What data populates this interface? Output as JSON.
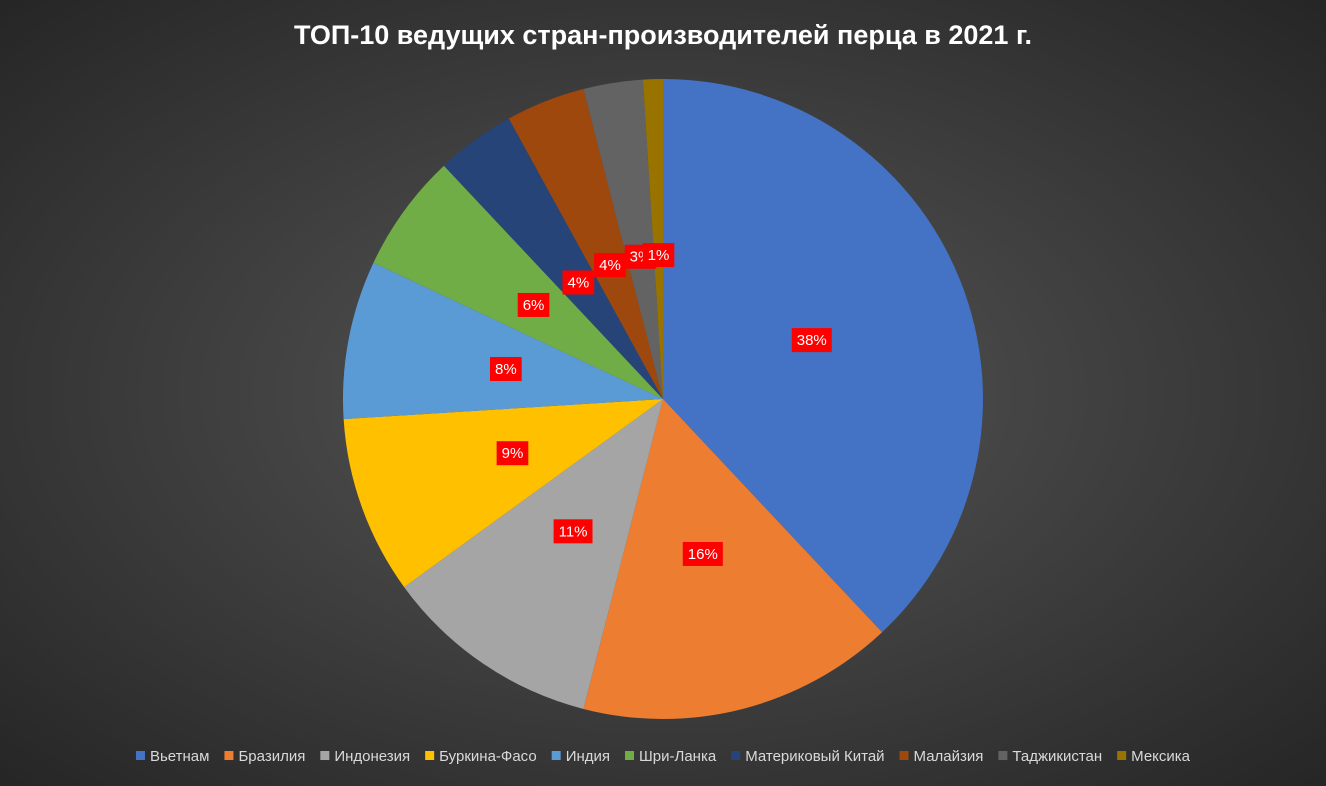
{
  "chart_data": {
    "type": "pie",
    "title": "ТОП-10 ведущих стран-производителей перца в 2021 г.",
    "categories": [
      "Вьетнам",
      "Бразилия",
      "Индонезия",
      "Буркина-Фасо",
      "Индия",
      "Шри-Ланка",
      "Материковый Китай",
      "Малайзия",
      "Таджикистан",
      "Мексика"
    ],
    "values": [
      38,
      16,
      11,
      9,
      8,
      6,
      4,
      4,
      3,
      1
    ],
    "value_labels": [
      "38%",
      "16%",
      "11%",
      "9%",
      "8%",
      "6%",
      "4%",
      "4%",
      "3%",
      "1%"
    ],
    "colors": [
      "#4472c4",
      "#ed7d31",
      "#a5a5a5",
      "#ffc000",
      "#5b9bd5",
      "#70ad47",
      "#264478",
      "#9e480e",
      "#636363",
      "#997300"
    ],
    "legend": "bottom"
  }
}
